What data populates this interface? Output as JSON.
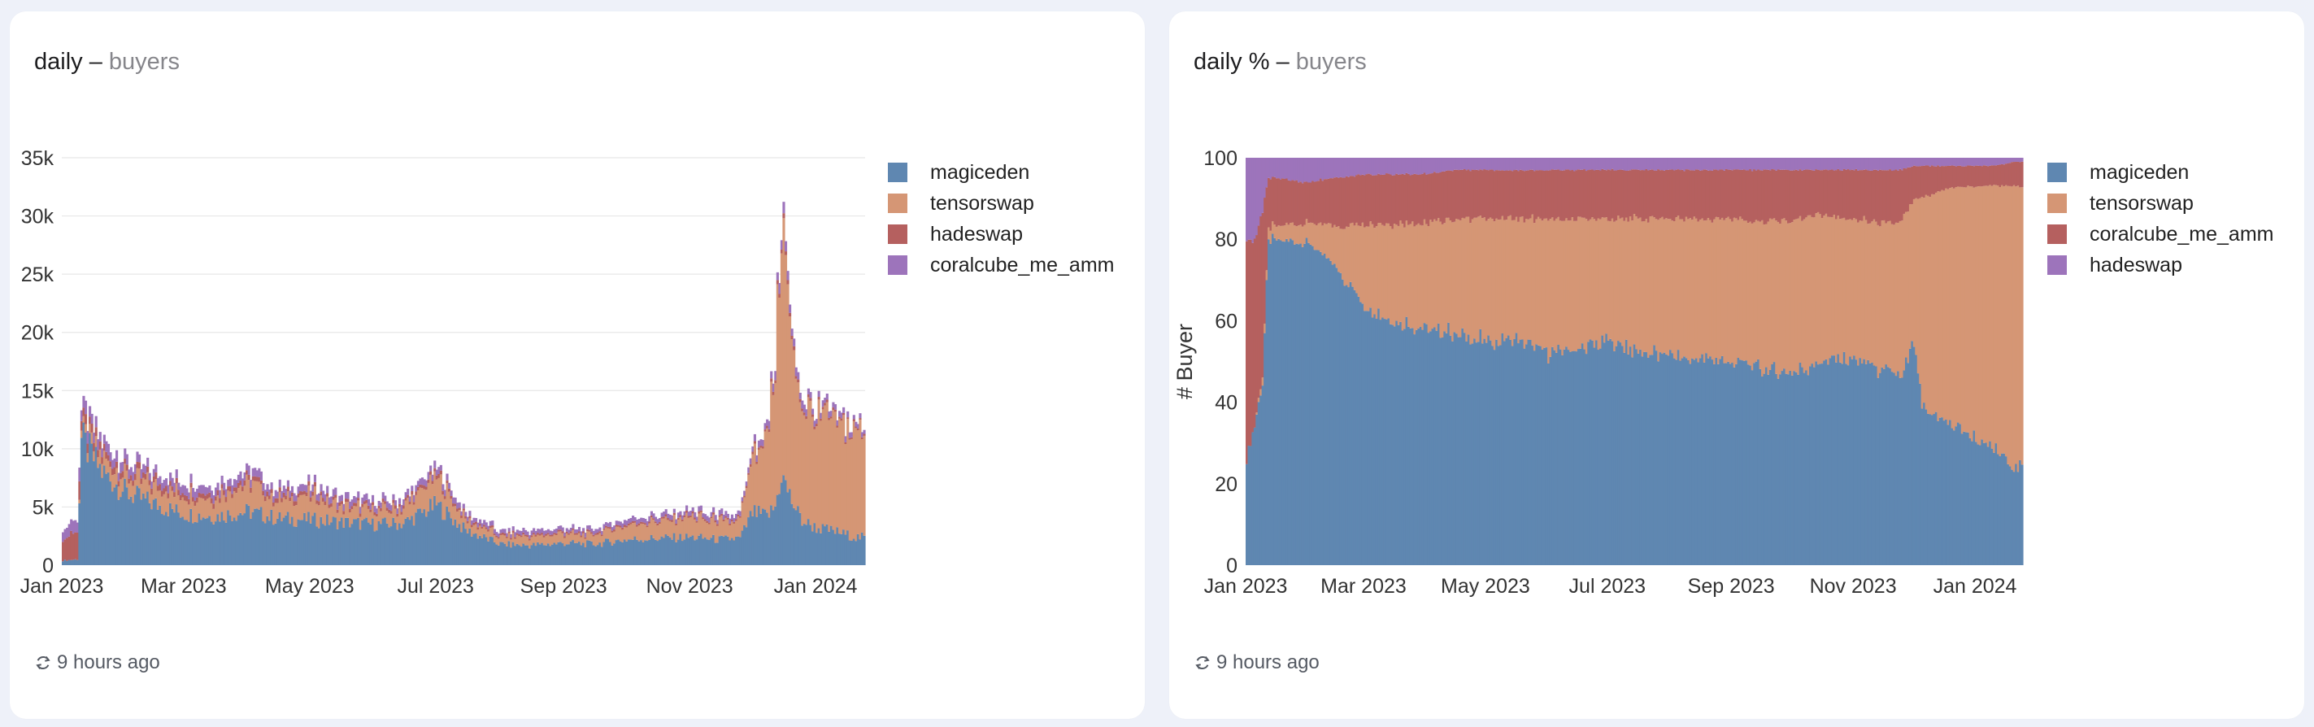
{
  "panels": [
    {
      "title": "daily",
      "separator": "–",
      "subtitle": "buyers",
      "footer_text": "9 hours ago"
    },
    {
      "title": "daily %",
      "separator": "–",
      "subtitle": "buyers",
      "footer_text": "9 hours ago"
    }
  ],
  "icons": {
    "refresh": "refresh-icon"
  },
  "colors": {
    "magiceden": "#5f87b1",
    "tensorswap": "#d59675",
    "hadeswap": "#b5605f",
    "coralcube_me_amm": "#9d74bb",
    "grid": "#e7e7e7"
  },
  "chart_data": [
    {
      "type": "bar",
      "stacked": true,
      "title": "daily – buyers",
      "xlabel": "",
      "ylabel": "",
      "x_range": [
        "2023-01-01",
        "2024-01-25"
      ],
      "ylim": [
        0,
        35000
      ],
      "yticks": [
        0,
        5000,
        10000,
        15000,
        20000,
        25000,
        30000,
        35000
      ],
      "ytick_labels": [
        "0",
        "5k",
        "10k",
        "15k",
        "20k",
        "25k",
        "30k",
        "35k"
      ],
      "xticks": [
        "2023-01-01",
        "2023-03-01",
        "2023-05-01",
        "2023-07-01",
        "2023-09-01",
        "2023-11-01",
        "2024-01-01"
      ],
      "xtick_labels": [
        "Jan 2023",
        "Mar 2023",
        "May 2023",
        "Jul 2023",
        "Sep 2023",
        "Nov 2023",
        "Jan 2024"
      ],
      "grid": true,
      "legend": "right",
      "series": [
        {
          "name": "magiceden",
          "color": "#5f87b1",
          "x": [
            "2023-01-01",
            "2023-01-08",
            "2023-01-10",
            "2023-01-20",
            "2023-02-01",
            "2023-02-15",
            "2023-03-01",
            "2023-03-15",
            "2023-04-01",
            "2023-04-15",
            "2023-05-01",
            "2023-05-15",
            "2023-06-01",
            "2023-06-15",
            "2023-07-01",
            "2023-07-15",
            "2023-08-01",
            "2023-08-15",
            "2023-09-01",
            "2023-09-15",
            "2023-10-01",
            "2023-10-15",
            "2023-11-01",
            "2023-11-15",
            "2023-11-25",
            "2023-12-01",
            "2023-12-08",
            "2023-12-12",
            "2023-12-15",
            "2023-12-20",
            "2023-12-25",
            "2024-01-01",
            "2024-01-10",
            "2024-01-20"
          ],
          "y": [
            400,
            500,
            10800,
            8000,
            6200,
            5200,
            4400,
            4200,
            4600,
            4000,
            3900,
            3700,
            3500,
            3600,
            5200,
            3000,
            1800,
            1700,
            1900,
            1800,
            2200,
            2300,
            2400,
            2200,
            2300,
            4500,
            4200,
            5000,
            7800,
            5500,
            3800,
            3200,
            2900,
            2400
          ]
        },
        {
          "name": "tensorswap",
          "color": "#d59675",
          "x": [
            "2023-01-01",
            "2023-01-08",
            "2023-01-10",
            "2023-01-20",
            "2023-02-01",
            "2023-02-15",
            "2023-03-01",
            "2023-03-15",
            "2023-04-01",
            "2023-04-15",
            "2023-05-01",
            "2023-05-15",
            "2023-06-01",
            "2023-06-15",
            "2023-07-01",
            "2023-07-15",
            "2023-08-01",
            "2023-08-15",
            "2023-09-01",
            "2023-09-15",
            "2023-10-01",
            "2023-10-15",
            "2023-11-01",
            "2023-11-15",
            "2023-11-25",
            "2023-12-01",
            "2023-12-08",
            "2023-12-12",
            "2023-12-15",
            "2023-12-20",
            "2023-12-25",
            "2024-01-01",
            "2024-01-10",
            "2024-01-20"
          ],
          "y": [
            0,
            0,
            600,
            1100,
            1400,
            1500,
            1600,
            1600,
            2500,
            1500,
            2000,
            1400,
            1200,
            1300,
            2400,
            800,
            700,
            700,
            800,
            800,
            1300,
            1400,
            1700,
            1500,
            1500,
            4800,
            6500,
            12000,
            22500,
            13000,
            10000,
            9500,
            9000,
            9200
          ]
        },
        {
          "name": "hadeswap",
          "color": "#b5605f",
          "x": [
            "2023-01-01",
            "2023-01-08",
            "2023-01-10",
            "2023-01-20",
            "2023-02-01",
            "2023-02-15",
            "2023-03-01",
            "2023-03-15",
            "2023-04-01",
            "2023-04-15",
            "2023-05-01",
            "2023-05-15",
            "2023-06-01",
            "2023-06-15",
            "2023-07-01",
            "2023-07-15",
            "2023-08-01",
            "2023-08-15",
            "2023-09-01",
            "2023-09-15",
            "2023-10-01",
            "2023-10-15",
            "2023-11-01",
            "2023-11-15",
            "2023-11-25",
            "2023-12-01",
            "2023-12-08",
            "2023-12-12",
            "2023-12-15",
            "2023-12-20",
            "2023-12-25",
            "2024-01-01",
            "2024-01-10",
            "2024-01-20"
          ],
          "y": [
            2000,
            2300,
            800,
            600,
            500,
            500,
            400,
            400,
            400,
            350,
            350,
            300,
            250,
            250,
            300,
            200,
            150,
            150,
            150,
            150,
            150,
            150,
            150,
            150,
            150,
            200,
            200,
            300,
            400,
            300,
            250,
            200,
            200,
            150
          ]
        },
        {
          "name": "coralcube_me_amm",
          "color": "#9d74bb",
          "x": [
            "2023-01-01",
            "2023-01-08",
            "2023-01-10",
            "2023-01-20",
            "2023-02-01",
            "2023-02-15",
            "2023-03-01",
            "2023-03-15",
            "2023-04-01",
            "2023-04-15",
            "2023-05-01",
            "2023-05-15",
            "2023-06-01",
            "2023-06-15",
            "2023-07-01",
            "2023-07-15",
            "2023-08-01",
            "2023-08-15",
            "2023-09-01",
            "2023-09-15",
            "2023-10-01",
            "2023-10-15",
            "2023-11-01",
            "2023-11-15",
            "2023-11-25",
            "2023-12-01",
            "2023-12-08",
            "2023-12-12",
            "2023-12-15",
            "2023-12-20",
            "2023-12-25",
            "2024-01-01",
            "2024-01-10",
            "2024-01-20"
          ],
          "y": [
            900,
            1000,
            1100,
            900,
            800,
            700,
            700,
            650,
            700,
            600,
            600,
            550,
            500,
            500,
            600,
            400,
            350,
            350,
            350,
            350,
            400,
            400,
            400,
            400,
            400,
            500,
            600,
            700,
            900,
            700,
            600,
            500,
            500,
            400
          ]
        }
      ]
    },
    {
      "type": "bar",
      "stacked": true,
      "normalized": true,
      "title": "daily % – buyers",
      "xlabel": "",
      "ylabel": "# Buyer",
      "x_range": [
        "2023-01-01",
        "2024-01-25"
      ],
      "ylim": [
        0,
        100
      ],
      "yticks": [
        0,
        20,
        40,
        60,
        80,
        100
      ],
      "ytick_labels": [
        "0",
        "20",
        "40",
        "60",
        "80",
        "100"
      ],
      "xticks": [
        "2023-01-01",
        "2023-03-01",
        "2023-05-01",
        "2023-07-01",
        "2023-09-01",
        "2023-11-01",
        "2024-01-01"
      ],
      "xtick_labels": [
        "Jan 2023",
        "Mar 2023",
        "May 2023",
        "Jul 2023",
        "Sep 2023",
        "Nov 2023",
        "Jan 2024"
      ],
      "grid": false,
      "legend": "right",
      "series": [
        {
          "name": "magiceden",
          "color": "#5f87b1",
          "x": [
            "2023-01-01",
            "2023-01-05",
            "2023-01-09",
            "2023-01-12",
            "2023-02-01",
            "2023-02-15",
            "2023-03-01",
            "2023-03-15",
            "2023-04-01",
            "2023-04-15",
            "2023-05-01",
            "2023-05-15",
            "2023-06-01",
            "2023-06-15",
            "2023-07-01",
            "2023-07-15",
            "2023-08-01",
            "2023-08-15",
            "2023-09-01",
            "2023-09-15",
            "2023-10-01",
            "2023-10-15",
            "2023-11-01",
            "2023-11-15",
            "2023-11-25",
            "2023-12-01",
            "2023-12-05",
            "2023-12-15",
            "2023-12-25",
            "2024-01-01",
            "2024-01-10",
            "2024-01-20"
          ],
          "y": [
            25,
            35,
            45,
            80,
            79,
            73,
            64,
            60,
            58,
            57,
            55,
            55,
            52,
            53,
            55,
            53,
            51,
            51,
            50,
            48,
            47,
            50,
            51,
            48,
            46,
            55,
            38,
            36,
            33,
            31,
            29,
            24
          ]
        },
        {
          "name": "tensorswap",
          "color": "#d59675",
          "x": [
            "2023-01-01",
            "2023-01-05",
            "2023-01-09",
            "2023-01-12",
            "2023-02-01",
            "2023-02-15",
            "2023-03-01",
            "2023-03-15",
            "2023-04-01",
            "2023-04-15",
            "2023-05-01",
            "2023-05-15",
            "2023-06-01",
            "2023-06-15",
            "2023-07-01",
            "2023-07-15",
            "2023-08-01",
            "2023-08-15",
            "2023-09-01",
            "2023-09-15",
            "2023-10-01",
            "2023-10-15",
            "2023-11-01",
            "2023-11-15",
            "2023-11-25",
            "2023-12-01",
            "2023-12-05",
            "2023-12-15",
            "2023-12-25",
            "2024-01-01",
            "2024-01-10",
            "2024-01-20"
          ],
          "y": [
            0,
            0,
            2,
            3,
            5,
            10,
            20,
            24,
            26,
            28,
            30,
            30,
            33,
            32,
            30,
            32,
            34,
            34,
            35,
            36,
            38,
            36,
            34,
            36,
            38,
            35,
            52,
            56,
            60,
            62,
            64,
            69
          ]
        },
        {
          "name": "coralcube_me_amm",
          "color": "#b5605f",
          "x": [
            "2023-01-01",
            "2023-01-05",
            "2023-01-09",
            "2023-01-12",
            "2023-02-01",
            "2023-02-15",
            "2023-03-01",
            "2023-03-15",
            "2023-04-01",
            "2023-04-15",
            "2023-05-01",
            "2023-05-15",
            "2023-06-01",
            "2023-06-15",
            "2023-07-01",
            "2023-07-15",
            "2023-08-01",
            "2023-08-15",
            "2023-09-01",
            "2023-09-15",
            "2023-10-01",
            "2023-10-15",
            "2023-11-01",
            "2023-11-15",
            "2023-11-25",
            "2023-12-01",
            "2023-12-05",
            "2023-12-15",
            "2023-12-25",
            "2024-01-01",
            "2024-01-10",
            "2024-01-20"
          ],
          "y": [
            55,
            45,
            40,
            12,
            10,
            12,
            12,
            12,
            12,
            12,
            12,
            12,
            12,
            12,
            12,
            12,
            12,
            12,
            12,
            13,
            12,
            11,
            12,
            13,
            13,
            8,
            8,
            6,
            5,
            5,
            5,
            6
          ]
        },
        {
          "name": "hadeswap",
          "color": "#9d74bb",
          "x": [
            "2023-01-01",
            "2023-01-05",
            "2023-01-09",
            "2023-01-12",
            "2023-02-01",
            "2023-02-15",
            "2023-03-01",
            "2023-03-15",
            "2023-04-01",
            "2023-04-15",
            "2023-05-01",
            "2023-05-15",
            "2023-06-01",
            "2023-06-15",
            "2023-07-01",
            "2023-07-15",
            "2023-08-01",
            "2023-08-15",
            "2023-09-01",
            "2023-09-15",
            "2023-10-01",
            "2023-10-15",
            "2023-11-01",
            "2023-11-15",
            "2023-11-25",
            "2023-12-01",
            "2023-12-05",
            "2023-12-15",
            "2023-12-25",
            "2024-01-01",
            "2024-01-10",
            "2024-01-20"
          ],
          "y": [
            20,
            20,
            13,
            5,
            6,
            5,
            4,
            4,
            4,
            3,
            3,
            3,
            3,
            3,
            3,
            3,
            3,
            3,
            3,
            3,
            3,
            3,
            3,
            3,
            3,
            2,
            2,
            2,
            2,
            2,
            2,
            1
          ]
        }
      ]
    }
  ]
}
